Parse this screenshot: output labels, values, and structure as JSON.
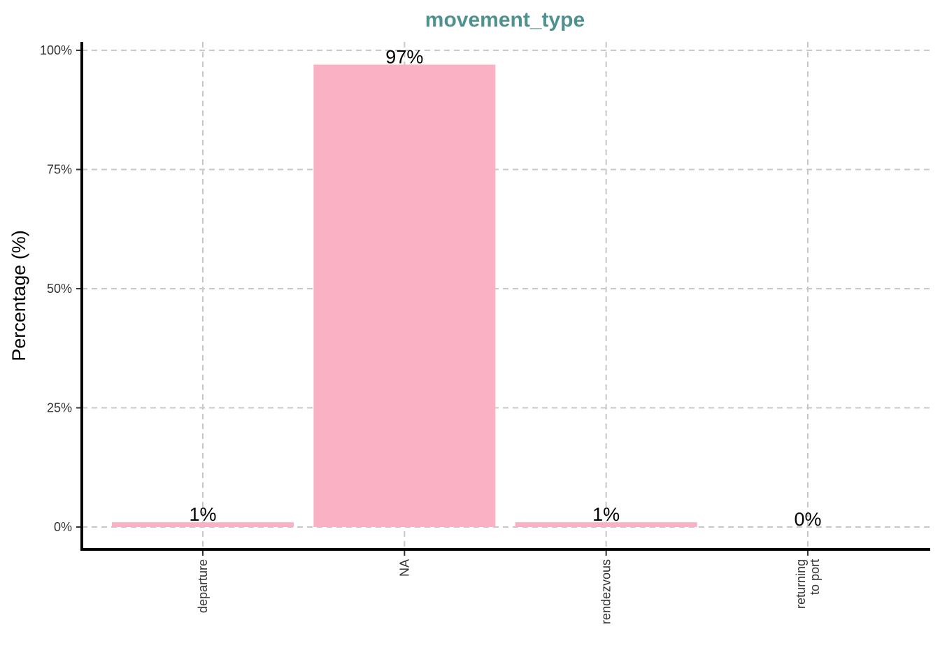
{
  "chart_data": {
    "type": "bar",
    "title": "movement_type",
    "xlabel": "",
    "ylabel": "Percentage (%)",
    "categories": [
      [
        "departure"
      ],
      [
        "NA"
      ],
      [
        "rendezvous"
      ],
      [
        "returning",
        "to port"
      ]
    ],
    "values": [
      1,
      97,
      1,
      0
    ],
    "value_labels": [
      "1%",
      "97%",
      "1%",
      "0%"
    ],
    "ylim": [
      0,
      100
    ],
    "yticks": [
      0,
      25,
      50,
      75,
      100
    ],
    "ytick_labels": [
      "0%",
      "25%",
      "50%",
      "75%",
      "100%"
    ],
    "grid": true,
    "legend": "none",
    "colors": {
      "bar": "#fbb1c4",
      "title": "#4f918e"
    }
  }
}
